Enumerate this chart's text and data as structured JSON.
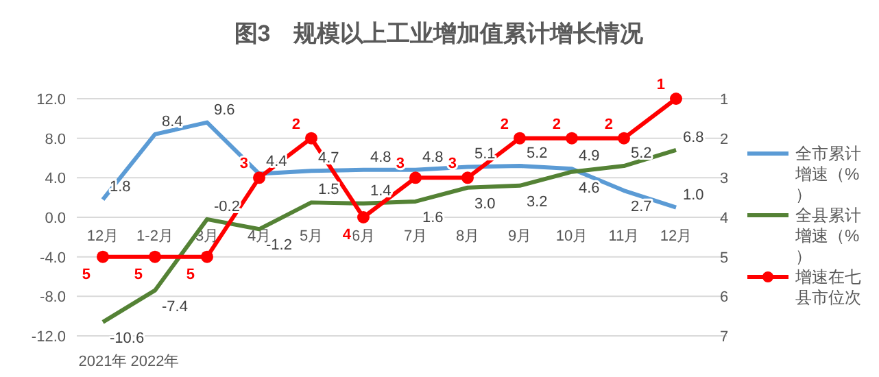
{
  "chart_data": {
    "type": "line",
    "title": "图3　规模以上工业增加值累计增长情况",
    "categories": [
      "12月",
      "1-2月",
      "3月",
      "4月",
      "5月",
      "6月",
      "7月",
      "8月",
      "9月",
      "10月",
      "11月",
      "12月"
    ],
    "annotations": [
      "2021年",
      "2022年"
    ],
    "series": [
      {
        "name": "全市累计增速（%）",
        "color": "#5b9bd5",
        "values": [
          1.8,
          8.4,
          9.6,
          4.4,
          4.7,
          4.8,
          4.8,
          5.1,
          5.2,
          4.9,
          2.7,
          1.0
        ],
        "value_labels": [
          "1.8",
          "8.4",
          "9.6",
          "4.4",
          "4.7",
          "4.8",
          "4.8",
          "5.1",
          "5.2",
          "4.9",
          "2.7",
          "1.0"
        ]
      },
      {
        "name": "全县累计增速（%）",
        "color": "#548235",
        "values": [
          -10.6,
          -7.4,
          -0.2,
          -1.2,
          1.5,
          1.4,
          1.6,
          3.0,
          3.2,
          4.6,
          5.2,
          6.8
        ],
        "value_labels": [
          "-10.6",
          "-7.4",
          "-0.2",
          "-1.2",
          "1.5",
          "1.4",
          "1.6",
          "3.0",
          "3.2",
          "4.6",
          "5.2",
          "6.8"
        ]
      },
      {
        "name": "增速在七县市位次",
        "color": "#ff0000",
        "axis": "y2",
        "marker": "circle",
        "values": [
          5,
          5,
          5,
          3,
          2,
          4,
          3,
          3,
          2,
          2,
          2,
          1
        ]
      }
    ],
    "ylim": [
      -12,
      12
    ],
    "yticks": [
      {
        "value": -12,
        "label": "-12.0"
      },
      {
        "value": -8,
        "label": "-8.0"
      },
      {
        "value": -4,
        "label": "-4.0"
      },
      {
        "value": 0,
        "label": "0.0"
      },
      {
        "value": 4,
        "label": "4.0"
      },
      {
        "value": 8,
        "label": "8.0"
      },
      {
        "value": 12,
        "label": "12.0"
      }
    ],
    "y2lim": [
      7,
      1
    ],
    "y2ticks": [
      1,
      2,
      3,
      4,
      5,
      6,
      7
    ],
    "data_labels": true,
    "grid": "y",
    "legend": "right",
    "marker": "none"
  }
}
